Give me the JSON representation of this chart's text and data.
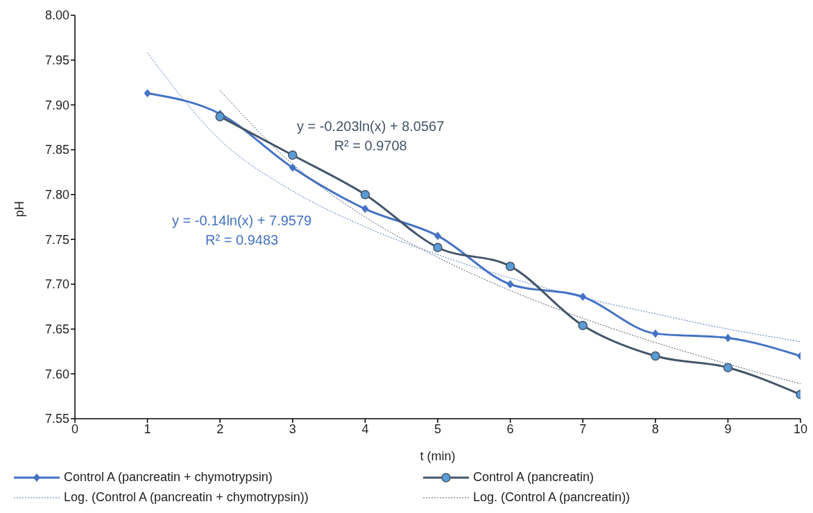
{
  "chart_data": {
    "type": "line",
    "xlabel": "t (min)",
    "ylabel": "pH",
    "xlim": [
      0,
      10
    ],
    "xticks": [
      0,
      1,
      2,
      3,
      4,
      5,
      6,
      7,
      8,
      9,
      10
    ],
    "ylim": [
      7.55,
      8.0
    ],
    "yticks": [
      7.55,
      {
        "value": 7.6,
        "label": "7.60"
      },
      7.65,
      {
        "value": 7.7,
        "label": "7.70"
      },
      7.75,
      {
        "value": 7.8,
        "label": "7.80"
      },
      7.85,
      {
        "value": 7.9,
        "label": "7.90"
      },
      7.95,
      {
        "value": 8.0,
        "label": "8.00"
      }
    ],
    "legend": "bottom",
    "line_style": "solid",
    "annotations": [
      "y = -0.203ln(x) + 8.0567\nR² = 0.9708",
      "y = -0.14ln(x) + 7.9579\nR² = 0.9483"
    ],
    "series": [
      {
        "name": "Control A (pancreatin + chymotrypsin)",
        "color": "#4472c4",
        "marker": "diamond",
        "x": [
          1,
          2,
          3,
          4,
          5,
          6,
          7,
          8,
          9,
          10
        ],
        "values": [
          7.913,
          7.89,
          7.83,
          7.784,
          7.754,
          7.7,
          7.686,
          7.645,
          7.64,
          7.62
        ]
      },
      {
        "name": "Control A (pancreatin)",
        "color": "#44546a",
        "marker": "circle",
        "x": [
          2,
          3,
          4,
          5,
          6,
          7,
          8,
          9,
          10
        ],
        "values": [
          7.887,
          7.844,
          7.8,
          7.741,
          7.72,
          7.654,
          7.62,
          7.607,
          7.577
        ]
      },
      {
        "name": "Log. (Control A (pancreatin + chymotrypsin))",
        "color": "#4472c4",
        "marker": "none",
        "line_style": "dotted",
        "x": [
          1,
          2,
          3,
          4,
          5,
          6,
          7,
          8,
          9,
          10
        ],
        "values": [
          7.958,
          7.861,
          7.804,
          7.764,
          7.733,
          7.707,
          7.685,
          7.667,
          7.65,
          7.636
        ]
      },
      {
        "name": "Log. (Control A (pancreatin))",
        "color": "#44546a",
        "marker": "none",
        "line_style": "dotted",
        "x": [
          2,
          3,
          4,
          5,
          6,
          7,
          8,
          9,
          10
        ],
        "values": [
          7.916,
          7.834,
          7.775,
          7.73,
          7.693,
          7.662,
          7.635,
          7.611,
          7.589
        ]
      }
    ]
  }
}
